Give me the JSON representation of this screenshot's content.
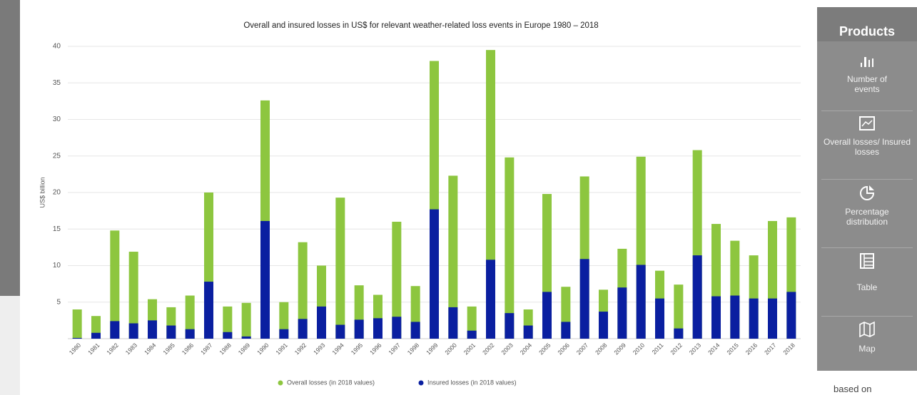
{
  "chart_data": {
    "type": "bar",
    "title": "Overall and insured losses in US$ for relevant weather-related loss events in Europe 1980 – 2018",
    "y_label": "US$ billion",
    "categories": [
      "1980",
      "1981",
      "1982",
      "1983",
      "1984",
      "1985",
      "1986",
      "1987",
      "1988",
      "1989",
      "1990",
      "1991",
      "1992",
      "1993",
      "1994",
      "1995",
      "1996",
      "1997",
      "1998",
      "1999",
      "2000",
      "2001",
      "2002",
      "2003",
      "2004",
      "2005",
      "2006",
      "2007",
      "2008",
      "2009",
      "2010",
      "2011",
      "2012",
      "2013",
      "2014",
      "2015",
      "2016",
      "2017",
      "2018"
    ],
    "series": [
      {
        "name": "Overall losses (in 2018 values)",
        "color": "#8dc63f",
        "values": [
          4.0,
          3.1,
          14.8,
          11.9,
          5.4,
          4.3,
          5.9,
          20.0,
          4.4,
          4.9,
          32.6,
          5.0,
          13.2,
          10.0,
          19.3,
          7.3,
          6.0,
          16.0,
          7.2,
          38.0,
          22.3,
          4.4,
          39.5,
          24.8,
          4.0,
          19.8,
          7.1,
          22.2,
          6.7,
          12.3,
          24.9,
          9.3,
          7.4,
          25.8,
          15.7,
          13.4,
          11.4,
          16.1,
          16.6
        ]
      },
      {
        "name": "Insured losses (in 2018 values)",
        "color": "#0a1fa0",
        "values": [
          0.1,
          0.8,
          2.4,
          2.1,
          2.5,
          1.8,
          1.3,
          7.8,
          0.9,
          0.3,
          16.1,
          1.3,
          2.7,
          4.4,
          1.9,
          2.6,
          2.8,
          3.0,
          2.3,
          17.7,
          4.3,
          1.1,
          10.8,
          3.5,
          1.8,
          6.4,
          2.3,
          10.9,
          3.7,
          7.0,
          10.1,
          5.5,
          1.4,
          11.4,
          5.8,
          5.9,
          5.5,
          5.5,
          6.4
        ]
      }
    ],
    "ylim": [
      0,
      40
    ],
    "yticks": [
      5,
      10,
      15,
      20,
      25,
      30,
      35,
      40
    ],
    "grid": true
  },
  "sidebar": {
    "title": "Products",
    "items": [
      "Number of events",
      "Overall losses/ Insured losses",
      "Percentage distribution",
      "Table",
      "Map"
    ]
  },
  "footer_text": "based on"
}
